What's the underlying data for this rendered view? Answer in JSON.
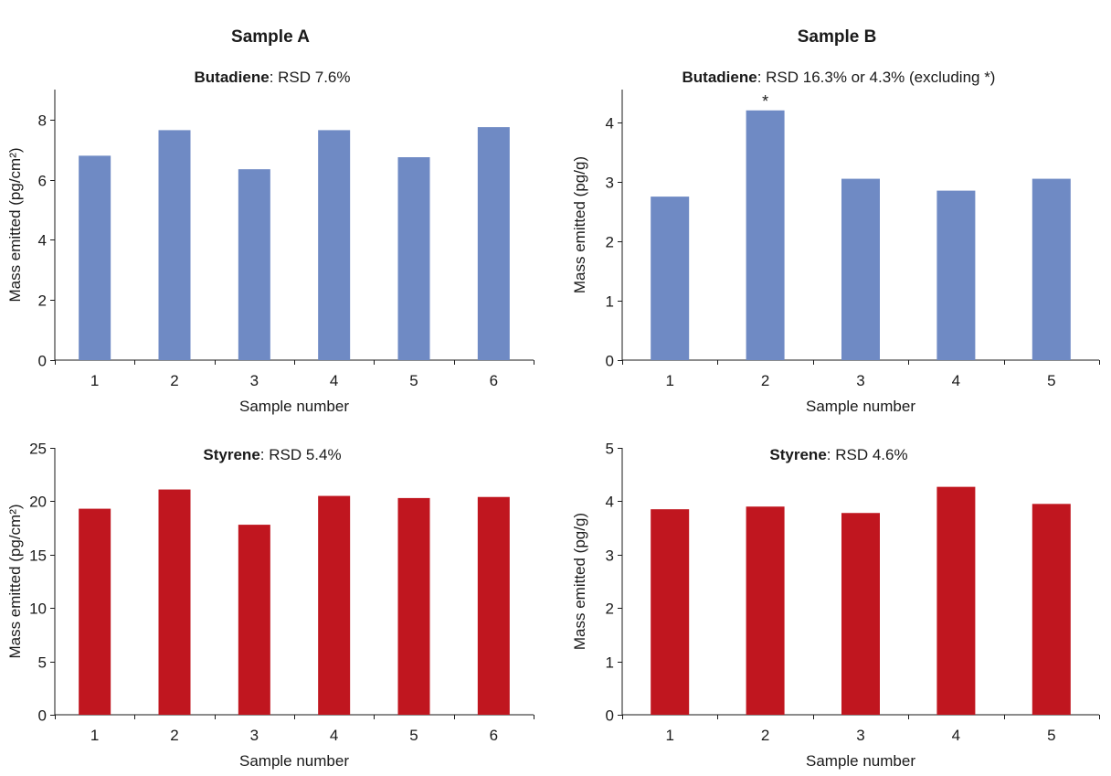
{
  "headers": {
    "sample_a": "Sample A",
    "sample_b": "Sample B"
  },
  "chart_data": [
    {
      "type": "bar",
      "title_bold": "Butadiene",
      "title_rest": ": RSD 7.6%",
      "xlabel": "Sample number",
      "ylabel": "Mass emitted (pg/cm²)",
      "categories": [
        "1",
        "2",
        "3",
        "4",
        "5",
        "6"
      ],
      "values": [
        6.8,
        7.65,
        6.35,
        7.65,
        6.75,
        7.75
      ],
      "ylim": [
        0,
        9
      ],
      "yticks": [
        0,
        2,
        4,
        6,
        8
      ],
      "color": "#6f8ac4",
      "annotations": []
    },
    {
      "type": "bar",
      "title_bold": "Butadiene",
      "title_rest": ": RSD 16.3% or 4.3% (excluding *)",
      "xlabel": "Sample number",
      "ylabel": "Mass emitted (pg/g)",
      "categories": [
        "1",
        "2",
        "3",
        "4",
        "5"
      ],
      "values": [
        2.75,
        4.2,
        3.05,
        2.85,
        3.05
      ],
      "ylim": [
        0,
        4.55
      ],
      "yticks": [
        0,
        1,
        2,
        3,
        4
      ],
      "color": "#6f8ac4",
      "annotations": [
        {
          "category": "2",
          "text": "*"
        }
      ]
    },
    {
      "type": "bar",
      "title_bold": "Styrene",
      "title_rest": ": RSD 5.4%",
      "xlabel": "Sample number",
      "ylabel": "Mass emitted (pg/cm²)",
      "categories": [
        "1",
        "2",
        "3",
        "4",
        "5",
        "6"
      ],
      "values": [
        19.3,
        21.1,
        17.8,
        20.5,
        20.3,
        20.4
      ],
      "ylim": [
        0,
        25
      ],
      "yticks": [
        0,
        5,
        10,
        15,
        20,
        25
      ],
      "color": "#c0161f",
      "annotations": []
    },
    {
      "type": "bar",
      "title_bold": "Styrene",
      "title_rest": ": RSD 4.6%",
      "xlabel": "Sample number",
      "ylabel": "Mass emitted (pg/g)",
      "categories": [
        "1",
        "2",
        "3",
        "4",
        "5"
      ],
      "values": [
        3.85,
        3.9,
        3.78,
        4.27,
        3.95
      ],
      "ylim": [
        0,
        5
      ],
      "yticks": [
        0,
        1,
        2,
        3,
        4,
        5
      ],
      "color": "#c0161f",
      "annotations": []
    }
  ]
}
